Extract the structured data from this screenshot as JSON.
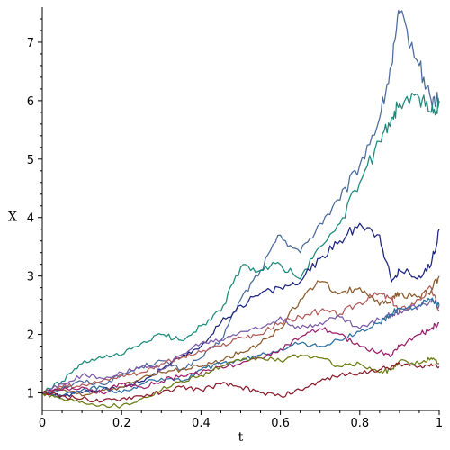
{
  "chart_data": {
    "type": "line",
    "xlabel": "t",
    "ylabel": "X",
    "xlim": [
      0,
      1
    ],
    "ylim": [
      0.7,
      7.6
    ],
    "x_ticks": [
      0,
      0.2,
      0.4,
      0.6,
      0.8,
      1
    ],
    "x_tick_labels": [
      "0",
      "0.2",
      "0.4",
      "0.6",
      "0.8",
      "1"
    ],
    "y_ticks": [
      1,
      2,
      3,
      4,
      5,
      6,
      7
    ],
    "y_tick_labels": [
      "1",
      "2",
      "3",
      "4",
      "5",
      "6",
      "7"
    ],
    "grid": false,
    "x": [
      0,
      0.05,
      0.1,
      0.15,
      0.2,
      0.25,
      0.3,
      0.35,
      0.4,
      0.45,
      0.5,
      0.55,
      0.6,
      0.65,
      0.7,
      0.75,
      0.8,
      0.85,
      0.88,
      0.9,
      0.95,
      0.98,
      1
    ],
    "series": [
      {
        "color": "#4a6b9a",
        "values": [
          1.0,
          1.08,
          1.2,
          1.15,
          1.3,
          1.45,
          1.55,
          1.4,
          1.6,
          1.9,
          2.6,
          3.1,
          3.7,
          3.4,
          3.9,
          4.3,
          4.9,
          5.7,
          6.6,
          7.5,
          6.6,
          6.0,
          6.0
        ]
      },
      {
        "color": "#1a8a7a",
        "values": [
          1.0,
          1.2,
          1.5,
          1.6,
          1.65,
          1.85,
          2.0,
          1.9,
          2.15,
          2.4,
          3.15,
          3.1,
          3.2,
          2.95,
          3.5,
          3.9,
          4.6,
          5.3,
          5.7,
          5.95,
          6.05,
          5.8,
          5.95
        ]
      },
      {
        "color": "#1a237e",
        "values": [
          1.0,
          0.95,
          1.0,
          1.05,
          1.1,
          1.2,
          1.4,
          1.6,
          1.8,
          2.2,
          2.5,
          2.7,
          2.8,
          2.9,
          3.3,
          3.6,
          3.9,
          3.7,
          2.9,
          3.1,
          3.0,
          3.2,
          3.8
        ]
      },
      {
        "color": "#8b5a2b",
        "values": [
          1.0,
          1.05,
          0.95,
          1.05,
          1.1,
          1.25,
          1.35,
          1.4,
          1.45,
          1.55,
          1.7,
          1.85,
          2.1,
          2.6,
          2.9,
          2.7,
          2.8,
          2.5,
          2.6,
          2.7,
          2.65,
          2.75,
          3.0
        ]
      },
      {
        "color": "#b05a5a",
        "values": [
          1.0,
          1.1,
          1.15,
          1.2,
          1.3,
          1.35,
          1.5,
          1.6,
          1.7,
          1.8,
          1.95,
          2.0,
          2.2,
          2.3,
          2.4,
          2.35,
          2.55,
          2.7,
          2.6,
          2.4,
          2.6,
          2.8,
          2.4
        ]
      },
      {
        "color": "#7a5aa8",
        "values": [
          1.0,
          1.15,
          1.3,
          1.25,
          1.35,
          1.45,
          1.4,
          1.65,
          1.85,
          1.9,
          2.05,
          2.1,
          2.3,
          2.1,
          2.2,
          2.3,
          2.1,
          2.25,
          2.35,
          2.4,
          2.5,
          2.55,
          2.5
        ]
      },
      {
        "color": "#2a6ea0",
        "values": [
          1.0,
          0.95,
          1.05,
          1.1,
          1.0,
          1.15,
          1.25,
          1.2,
          1.4,
          1.5,
          1.55,
          1.65,
          1.75,
          1.85,
          1.8,
          1.9,
          2.05,
          2.2,
          2.35,
          2.45,
          2.5,
          2.6,
          2.5
        ]
      },
      {
        "color": "#9a1f6a",
        "values": [
          1.0,
          1.05,
          1.1,
          1.0,
          1.15,
          1.1,
          1.2,
          1.3,
          1.35,
          1.45,
          1.5,
          1.6,
          1.75,
          1.95,
          2.1,
          2.0,
          1.8,
          1.7,
          1.65,
          1.8,
          2.0,
          2.1,
          2.2
        ]
      },
      {
        "color": "#6b7a10",
        "values": [
          1.0,
          0.9,
          0.85,
          0.8,
          0.78,
          0.9,
          1.05,
          1.2,
          1.3,
          1.45,
          1.55,
          1.6,
          1.55,
          1.65,
          1.6,
          1.45,
          1.5,
          1.35,
          1.4,
          1.55,
          1.5,
          1.6,
          1.5
        ]
      },
      {
        "color": "#8b1a2a",
        "values": [
          1.0,
          0.95,
          0.9,
          0.85,
          0.9,
          0.95,
          1.0,
          1.1,
          1.05,
          1.15,
          1.1,
          1.0,
          0.95,
          1.05,
          1.2,
          1.3,
          1.35,
          1.4,
          1.45,
          1.5,
          1.45,
          1.5,
          1.45
        ]
      }
    ]
  }
}
